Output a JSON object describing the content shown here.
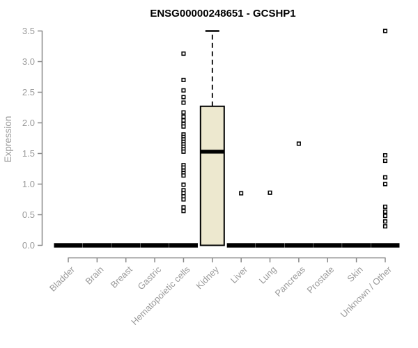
{
  "chart_data": {
    "type": "boxplot",
    "title": "ENSG00000248651 - GCSHP1",
    "ylabel": "Expression",
    "xlabel": "",
    "ylim": [
      0,
      3.5
    ],
    "yticks": [
      0.0,
      0.5,
      1.0,
      1.5,
      2.0,
      2.5,
      3.0,
      3.5
    ],
    "grid": "off",
    "legend": "none",
    "categories": [
      "Bladder",
      "Brain",
      "Breast",
      "Gastric",
      "Hematopoietic cells",
      "Kidney",
      "Liver",
      "Lung",
      "Pancreas",
      "Prostate",
      "Skin",
      "Unknown / Other"
    ],
    "boxes": [
      {
        "category": "Bladder",
        "q1": 0,
        "median": 0,
        "q3": 0,
        "whisker_low": 0,
        "whisker_high": 0,
        "outliers": []
      },
      {
        "category": "Brain",
        "q1": 0,
        "median": 0,
        "q3": 0,
        "whisker_low": 0,
        "whisker_high": 0,
        "outliers": []
      },
      {
        "category": "Breast",
        "q1": 0,
        "median": 0,
        "q3": 0,
        "whisker_low": 0,
        "whisker_high": 0,
        "outliers": []
      },
      {
        "category": "Gastric",
        "q1": 0,
        "median": 0,
        "q3": 0,
        "whisker_low": 0,
        "whisker_high": 0,
        "outliers": []
      },
      {
        "category": "Hematopoietic cells",
        "q1": 0,
        "median": 0,
        "q3": 0,
        "whisker_low": 0,
        "whisker_high": 0,
        "outliers": [
          3.13,
          2.7,
          2.53,
          2.42,
          2.33,
          2.17,
          2.1,
          2.04,
          1.98,
          1.94,
          1.81,
          1.77,
          1.73,
          1.69,
          1.65,
          1.61,
          1.57,
          1.53,
          1.31,
          1.27,
          1.22,
          1.18,
          1.14,
          0.99,
          0.9,
          0.85,
          0.8,
          0.75,
          0.62,
          0.56
        ]
      },
      {
        "category": "Kidney",
        "q1": 0,
        "median": 1.53,
        "q3": 2.27,
        "whisker_low": 0,
        "whisker_high": 3.5,
        "outliers": []
      },
      {
        "category": "Liver",
        "q1": 0,
        "median": 0,
        "q3": 0,
        "whisker_low": 0,
        "whisker_high": 0,
        "outliers": [
          0.85
        ]
      },
      {
        "category": "Lung",
        "q1": 0,
        "median": 0,
        "q3": 0,
        "whisker_low": 0,
        "whisker_high": 0,
        "outliers": [
          0.86
        ]
      },
      {
        "category": "Pancreas",
        "q1": 0,
        "median": 0,
        "q3": 0,
        "whisker_low": 0,
        "whisker_high": 0,
        "outliers": [
          1.66
        ]
      },
      {
        "category": "Prostate",
        "q1": 0,
        "median": 0,
        "q3": 0,
        "whisker_low": 0,
        "whisker_high": 0,
        "outliers": []
      },
      {
        "category": "Skin",
        "q1": 0,
        "median": 0,
        "q3": 0,
        "whisker_low": 0,
        "whisker_high": 0,
        "outliers": []
      },
      {
        "category": "Unknown / Other",
        "q1": 0,
        "median": 0,
        "q3": 0,
        "whisker_low": 0,
        "whisker_high": 0,
        "outliers": [
          3.5,
          1.47,
          1.38,
          1.11,
          1.0,
          0.63,
          0.55,
          0.48,
          0.39,
          0.31
        ]
      }
    ],
    "colors": {
      "background": "#ffffff",
      "box_fill": "#EDE8CF",
      "box_border": "#000000",
      "median": "#000000",
      "outlier_stroke": "#000000",
      "outlier_fill": "#ffffff",
      "axis_line": "#888888",
      "tick_text": "#9a9a9a",
      "title_text": "#000000"
    }
  }
}
